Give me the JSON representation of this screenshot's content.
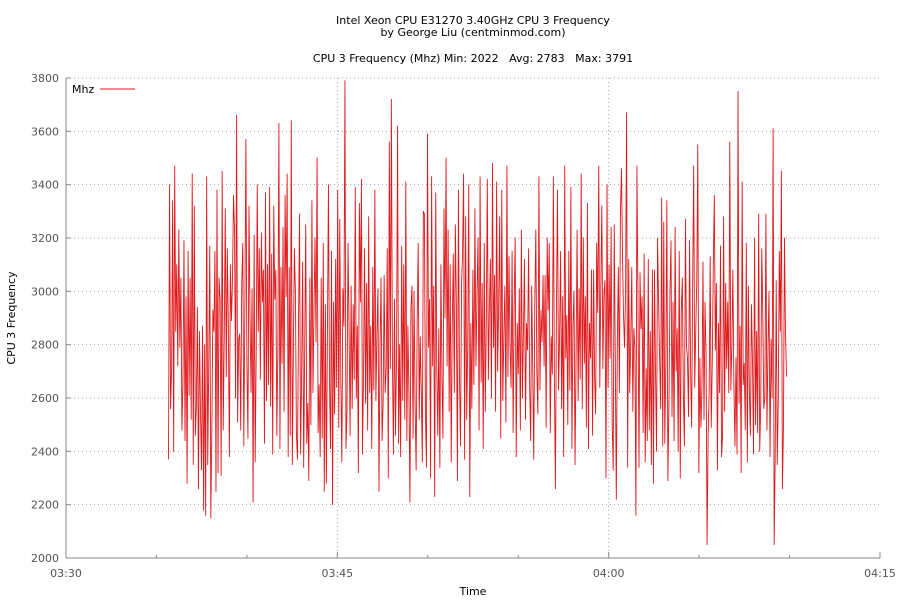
{
  "chart_data": {
    "type": "line",
    "title_line1": "Intel Xeon CPU E31270 3.40GHz CPU 3 Frequency",
    "title_line2": "by George Liu (centminmod.com)",
    "subtitle": "CPU 3 Frequency (Mhz) Min: 2022   Avg: 2783   Max: 3791",
    "xlabel": "Time",
    "ylabel": "CPU 3 Frequency",
    "xlim": [
      "03:30",
      "04:15"
    ],
    "ylim": [
      2000,
      3800
    ],
    "x_ticks": [
      "03:30",
      "03:45",
      "04:00",
      "04:15"
    ],
    "y_ticks": [
      2000,
      2200,
      2400,
      2600,
      2800,
      3000,
      3200,
      3400,
      3600,
      3800
    ],
    "grid": true,
    "legend_position": "top-left",
    "series": [
      {
        "name": "Mhz",
        "color": "#e0191c",
        "x_start": "03:35:40",
        "x_end": "04:09:50",
        "stats": {
          "min": 2022,
          "avg": 2783,
          "max": 3791
        },
        "values": [
          2370,
          3400,
          2560,
          2700,
          3340,
          2400,
          3470,
          2850,
          3100,
          2720,
          3230,
          2790,
          3050,
          2480,
          2660,
          3190,
          2440,
          2980,
          2280,
          3150,
          2610,
          3050,
          2520,
          3440,
          2350,
          3320,
          2460,
          2570,
          2940,
          2260,
          2850,
          2550,
          2330,
          2870,
          2180,
          2800,
          2160,
          3430,
          2350,
          2720,
          3170,
          2150,
          2480,
          2930,
          2850,
          3150,
          2250,
          3380,
          2320,
          3050,
          2970,
          2310,
          3450,
          2480,
          2820,
          3310,
          2680,
          3160,
          2870,
          2380,
          3100,
          2890,
          3040,
          3360,
          3230,
          2600,
          3660,
          2510,
          2820,
          2840,
          2480,
          3030,
          3180,
          2420,
          2940,
          3570,
          2720,
          2450,
          3320,
          2910,
          2620,
          3010,
          2210,
          3210,
          2360,
          2780,
          3400,
          2850,
          3160,
          2670,
          3220,
          2960,
          3080,
          2430,
          3370,
          2590,
          3100,
          2650,
          3390,
          2570,
          3140,
          2390,
          3320,
          2970,
          3080,
          2460,
          2790,
          3630,
          2410,
          3090,
          2730,
          3240,
          2550,
          3360,
          2980,
          3440,
          2380,
          3090,
          2460,
          3640,
          2350,
          2770,
          3160,
          3000,
          2460,
          2370,
          2870,
          3290,
          2390,
          2680,
          3110,
          2340,
          2790,
          3250,
          2430,
          2580,
          2290,
          3050,
          2500,
          3340,
          2620,
          2930,
          3200,
          2810,
          3500,
          2470,
          2650,
          2380,
          3050,
          2450,
          3180,
          2250,
          2950,
          2280,
          2830,
          3400,
          2680,
          2410,
          3150,
          2200,
          2960,
          2540,
          3120,
          2640,
          3380,
          2490,
          3270,
          2670,
          2360,
          3010,
          2870,
          3790,
          2410,
          2550,
          3180,
          2860,
          2460,
          3020,
          2560,
          2950,
          2670,
          3390,
          2600,
          2870,
          2320,
          3330,
          2960,
          3420,
          2390,
          2690,
          3160,
          2580,
          3030,
          2480,
          3280,
          2620,
          2870,
          2410,
          3090,
          2630,
          3380,
          2590,
          2840,
          3010,
          2250,
          2790,
          3050,
          2440,
          2580,
          3060,
          2620,
          2710,
          3160,
          2300,
          3560,
          2710,
          3720,
          2760,
          2390,
          2970,
          2460,
          2750,
          3620,
          2430,
          2800,
          2380,
          3170,
          2590,
          3100,
          2520,
          3410,
          2440,
          2870,
          2620,
          2210,
          2940,
          3020,
          2450,
          3000,
          2570,
          2330,
          2880,
          3180,
          2520,
          2830,
          2620,
          2360,
          3300,
          3290,
          2550,
          2340,
          3590,
          2790,
          2970,
          2300,
          3430,
          2720,
          3020,
          2230,
          3370,
          2710,
          2460,
          2860,
          2340,
          3100,
          2690,
          2450,
          3310,
          2900,
          3500,
          2720,
          3230,
          2550,
          3100,
          2360,
          2870,
          3140,
          2620,
          3250,
          2950,
          2290,
          3380,
          2680,
          2420,
          3020,
          3140,
          3440,
          2370,
          3280,
          2520,
          2790,
          3400,
          2230,
          2880,
          2560,
          3080,
          2650,
          3310,
          2720,
          2990,
          3200,
          2480,
          3430,
          2660,
          3030,
          2410,
          3180,
          2550,
          2880,
          3420,
          2670,
          2940,
          3120,
          2600,
          3480,
          2790,
          3060,
          2550,
          3410,
          2700,
          2960,
          3280,
          2450,
          3380,
          2590,
          2830,
          3020,
          2510,
          3470,
          2680,
          3130,
          2800,
          2640,
          3150,
          2470,
          2950,
          3200,
          2380,
          2880,
          2690,
          3010,
          2480,
          3230,
          2600,
          2850,
          3120,
          2520,
          2880,
          2780,
          3160,
          2650,
          2440,
          3020,
          2710,
          2370,
          2950,
          3230,
          2700,
          2540,
          3430,
          2630,
          2930,
          2810,
          3060,
          2720,
          3060,
          2490,
          3200,
          2930,
          3180,
          2470,
          2830,
          2690,
          3430,
          2680,
          2260,
          2940,
          3380,
          2630,
          2820,
          3150,
          2560,
          2980,
          2380,
          3470,
          2750,
          2910,
          2500,
          3150,
          2630,
          3390,
          2410,
          2870,
          3000,
          2350,
          2750,
          3230,
          2590,
          3010,
          2670,
          3440,
          2560,
          3200,
          2730,
          2980,
          2490,
          3330,
          2410,
          2880,
          2750,
          3080,
          2460,
          3080,
          2680,
          2540,
          3180,
          2920,
          3470,
          2640,
          3020,
          3320,
          2710,
          2990,
          3040,
          2300,
          3400,
          2640,
          3100,
          2750,
          3240,
          2500,
          2330,
          3250,
          2760,
          2220,
          2810,
          3090,
          2620,
          3290,
          3460,
          3140,
          2910,
          2790,
          3010,
          3670,
          2340,
          3120,
          2620,
          2810,
          3090,
          2550,
          2860,
          2790,
          2160,
          3470,
          2980,
          2340,
          3070,
          2860,
          2980,
          2470,
          3140,
          2360,
          2710,
          2440,
          3120,
          2480,
          2850,
          2350,
          3080,
          2280,
          3080,
          2700,
          2400,
          3200,
          2960,
          2750,
          2560,
          3350,
          2420,
          3260,
          2430,
          2730,
          3340,
          2290,
          2570,
          2990,
          3190,
          2530,
          2960,
          2440,
          3240,
          2700,
          2860,
          2400,
          3150,
          2300,
          2930,
          3050,
          2610,
          2420,
          3270,
          2800,
          2750,
          2530,
          3190,
          2710,
          2490,
          3020,
          3470,
          2640,
          2850,
          3040,
          3550,
          2320,
          2750,
          2490,
          2630,
          3110,
          2520,
          2960,
          2760,
          2050,
          2460,
          2620,
          3130,
          2490,
          2730,
          3090,
          3360,
          2780,
          3030,
          2330,
          2880,
          2620,
          3170,
          2380,
          2460,
          3280,
          2550,
          3030,
          2710,
          2960,
          2620,
          3560,
          2630,
          2800,
          3080,
          2640,
          2420,
          2750,
          2390,
          3750,
          2580,
          2870,
          2320,
          3410,
          2650,
          2730,
          2480,
          3180,
          2360,
          3020,
          2620,
          2460,
          2950,
          2740,
          2390,
          3200,
          2500,
          2850,
          2470,
          3290,
          2400,
          2580,
          3160,
          2910,
          2560,
          2600,
          3290,
          2480,
          2780,
          3000,
          2380,
          2820,
          2600,
          3610,
          2050,
          2380,
          3040,
          2350,
          2590,
          3150,
          2850,
          3450,
          2260,
          2490,
          3200,
          2840,
          2680
        ]
      }
    ]
  }
}
